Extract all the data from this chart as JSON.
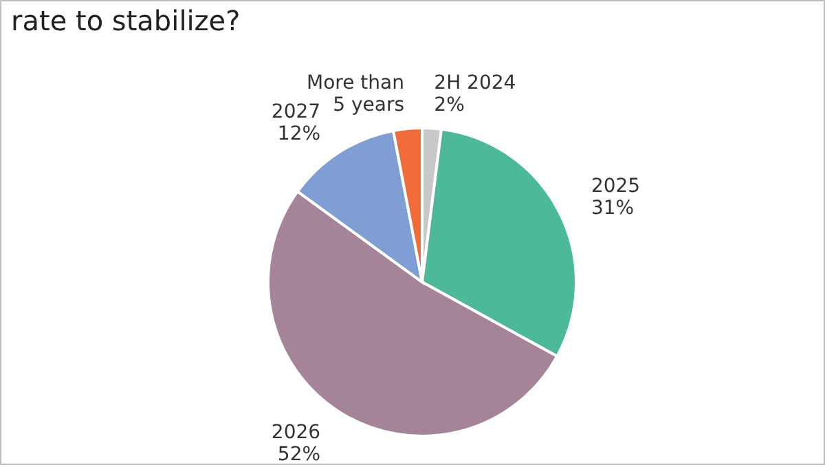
{
  "chart_data": {
    "type": "pie",
    "title": "rate to stabilize?",
    "categories": [
      "2H 2024",
      "2025",
      "2026",
      "2027",
      "More than 5 years"
    ],
    "values": [
      2,
      31,
      52,
      12,
      3
    ],
    "value_labels": [
      "2%",
      "31%",
      "52%",
      "12%",
      null
    ],
    "colors": [
      "#c8c8c8",
      "#4db89a",
      "#a58499",
      "#7f9fd4",
      "#f26b3a"
    ]
  }
}
